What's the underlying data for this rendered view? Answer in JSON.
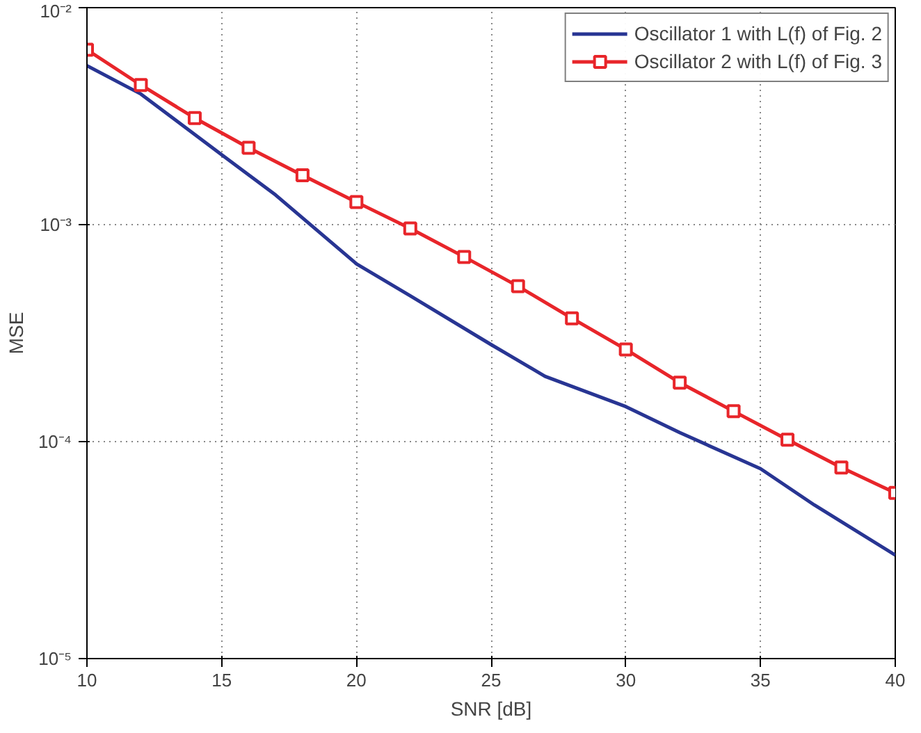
{
  "chart_data": {
    "type": "line",
    "xlabel": "SNR [dB]",
    "ylabel": "MSE",
    "log": "y",
    "xlim": [
      10,
      40
    ],
    "xticks": [
      10,
      15,
      20,
      25,
      30,
      35,
      40
    ],
    "ylim": [
      1e-05,
      0.01
    ],
    "yticks": [
      {
        "value": 1e-05,
        "label": "10⁻⁵"
      },
      {
        "value": 0.0001,
        "label": "10⁻⁴"
      },
      {
        "value": 0.001,
        "label": "10⁻³"
      },
      {
        "value": 0.01,
        "label": "10⁻²"
      }
    ],
    "grid": true,
    "legend": "top right",
    "series": [
      {
        "name": "Oscillator 1 with L(f) of Fig. 2",
        "color": "#283593",
        "marker": "none",
        "x": [
          10,
          12,
          15,
          17,
          20,
          22,
          25,
          27,
          30,
          32,
          35,
          37,
          40
        ],
        "values": [
          0.0054,
          0.004,
          0.0021,
          0.00137,
          0.00066,
          0.00047,
          0.00028,
          0.0002,
          0.000145,
          0.00011,
          7.5e-05,
          5.1e-05,
          3e-05
        ]
      },
      {
        "name": "Oscillator 2 with L(f) of Fig. 3",
        "color": "#e8252a",
        "marker": "square",
        "x": [
          10,
          12,
          14,
          16,
          18,
          20,
          22,
          24,
          26,
          28,
          30,
          32,
          34,
          36,
          38,
          40
        ],
        "values": [
          0.0064,
          0.0044,
          0.0031,
          0.00226,
          0.00169,
          0.00127,
          0.00096,
          0.00071,
          0.00052,
          0.00037,
          0.000266,
          0.000187,
          0.000138,
          0.000102,
          7.6e-05,
          5.8e-05
        ]
      }
    ]
  }
}
